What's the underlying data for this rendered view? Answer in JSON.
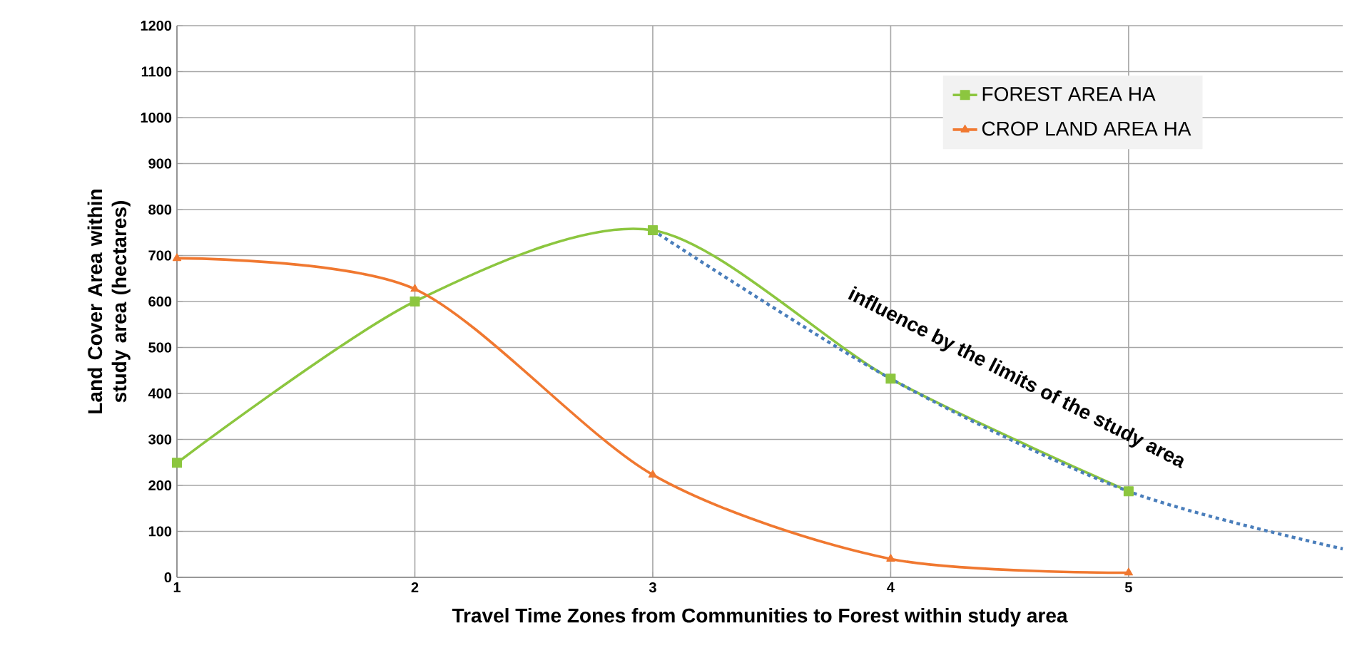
{
  "chart_data": {
    "type": "line",
    "xlabel": "Travel Time Zones from Communities to Forest within study area",
    "ylabel": "Land Cover Area within study area (hectares)",
    "xlim": [
      1,
      5.9
    ],
    "xticks": [
      1,
      2,
      3,
      4,
      5
    ],
    "ylim": [
      0,
      1200
    ],
    "yticks": [
      0,
      100,
      200,
      300,
      400,
      500,
      600,
      700,
      800,
      900,
      1000,
      1100,
      1200
    ],
    "grid": true,
    "legend": "top right",
    "series": [
      {
        "name": "FOREST AREA HA",
        "color": "#8cc63f",
        "marker": "square",
        "x": [
          1,
          2,
          3,
          4,
          5
        ],
        "values": [
          249,
          600,
          755,
          432,
          187
        ]
      },
      {
        "name": "CROP LAND AREA HA",
        "color": "#f07830",
        "marker": "triangle",
        "x": [
          1,
          2,
          3,
          4,
          5
        ],
        "values": [
          694,
          627,
          223,
          40,
          10
        ]
      },
      {
        "color": "#4a7ebb",
        "marker": "none",
        "line_style": "dotted",
        "x": [
          3,
          4,
          5,
          5.9
        ],
        "values": [
          755,
          432,
          187,
          62
        ]
      }
    ],
    "annotations": [
      "influence by the limits of the study area"
    ]
  }
}
